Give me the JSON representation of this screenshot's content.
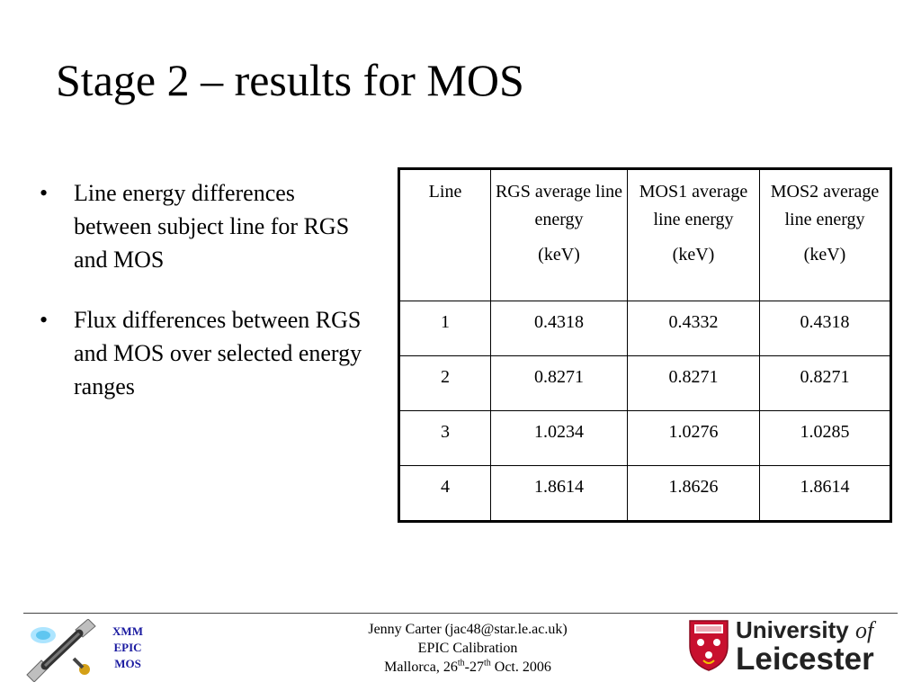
{
  "slide": {
    "title": "Stage 2 – results for MOS",
    "bullets": [
      "Line energy differences between subject line for RGS and MOS",
      "Flux differences between RGS and MOS over selected energy ranges"
    ]
  },
  "table": {
    "headers": [
      {
        "label": "Line",
        "unit": ""
      },
      {
        "label": "RGS average line energy",
        "unit": "(keV)"
      },
      {
        "label": "MOS1 average line energy",
        "unit": "(keV)"
      },
      {
        "label": "MOS2 average line energy",
        "unit": "(keV)"
      }
    ],
    "rows": [
      [
        "1",
        "0.4318",
        "0.4332",
        "0.4318"
      ],
      [
        "2",
        "0.8271",
        "0.8271",
        "0.8271"
      ],
      [
        "3",
        "1.0234",
        "1.0276",
        "1.0285"
      ],
      [
        "4",
        "1.8614",
        "1.8626",
        "1.8614"
      ]
    ]
  },
  "footer": {
    "author": "Jenny Carter (jac48@star.le.ac.uk)",
    "event": "EPIC Calibration",
    "location_prefix": "Mallorca, 26",
    "sup1": "th",
    "dash": "-27",
    "sup2": "th",
    "location_suffix": " Oct. 2006"
  },
  "logo_left": {
    "line1": "XMM",
    "line2": "EPIC",
    "line3": "MOS"
  },
  "logo_right": {
    "name_part1": "University",
    "name_part2": "of",
    "name_part3": "Leicester"
  }
}
